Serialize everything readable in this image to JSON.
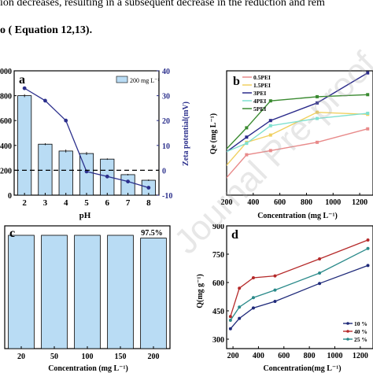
{
  "header": {
    "line1": "ion decreases, resulting in a subsequent decrease in the reduction and rem",
    "line2": "o ( Equation 12,13)."
  },
  "watermark": "Journal Pre-proof",
  "chart_data": [
    {
      "panel": "a",
      "type": "bar",
      "xlabel": "pH",
      "ylabel_right": "Zeta potential(mV)",
      "categories": [
        "2",
        "3",
        "4",
        "5",
        "6",
        "7",
        "8"
      ],
      "series": [
        {
          "name": "200 mg L⁻¹",
          "values": [
            800,
            410,
            355,
            335,
            290,
            165,
            120
          ],
          "error": [
            12,
            8,
            12,
            12,
            6,
            6,
            6
          ],
          "color": "#b9dcf4"
        }
      ],
      "line_series": {
        "values": [
          33,
          28,
          20,
          -0.5,
          -2.5,
          -4.5,
          -7
        ],
        "color": "#2b2f8c"
      },
      "ylim_left": [
        0,
        1000
      ],
      "y_ticks_left": [
        "0",
        "200",
        "400",
        "600",
        "800",
        "1000"
      ],
      "ylim_right": [
        -10,
        40
      ],
      "y_ticks_right": [
        "-10",
        "0",
        "10",
        "20",
        "30",
        "40"
      ],
      "dashed_line": 0
    },
    {
      "panel": "b",
      "type": "line",
      "xlabel": "Concentration (mg L⁻¹)",
      "ylabel": "Qe (mg L⁻¹)",
      "xlim": [
        200,
        1300
      ],
      "x_ticks": [
        "200",
        "400",
        "600",
        "800",
        "1000",
        "1200"
      ],
      "ylim": [
        200,
        800
      ],
      "series": [
        {
          "name": "0.5PEI",
          "color": "#e88a8a",
          "x": [
            180,
            350,
            530,
            880,
            1260
          ],
          "y": [
            270,
            395,
            415,
            455,
            520
          ]
        },
        {
          "name": "1.5PEI",
          "color": "#f0d060",
          "x": [
            180,
            350,
            530,
            880,
            1260
          ],
          "y": [
            330,
            455,
            490,
            600,
            590
          ]
        },
        {
          "name": "3PEI",
          "color": "#2a2a8a",
          "x": [
            180,
            350,
            530,
            880,
            1260
          ],
          "y": [
            400,
            480,
            560,
            645,
            790
          ]
        },
        {
          "name": "4PEI",
          "color": "#7fe0d0",
          "x": [
            180,
            350,
            530,
            880,
            1260
          ],
          "y": [
            405,
            450,
            535,
            570,
            595
          ]
        },
        {
          "name": "5PEI",
          "color": "#3a8a30",
          "x": [
            180,
            350,
            530,
            880,
            1260
          ],
          "y": [
            410,
            525,
            655,
            675,
            685
          ]
        }
      ]
    },
    {
      "panel": "c",
      "type": "bar",
      "xlabel": "Concentration (mg L⁻¹)",
      "categories": [
        "20",
        "50",
        "100",
        "150",
        "200"
      ],
      "values": [
        100,
        100,
        100,
        100,
        97.5
      ],
      "ylim": [
        0,
        100
      ],
      "annotation": "97.5%",
      "color": "#b9dcf4"
    },
    {
      "panel": "d",
      "type": "line",
      "xlabel": "Concentration(mg L⁻¹)",
      "ylabel": "Q(mg g⁻¹)",
      "xlim": [
        150,
        1300
      ],
      "x_ticks": [
        "200",
        "400",
        "600",
        "800",
        "1000",
        "1200"
      ],
      "ylim": [
        250,
        900
      ],
      "y_ticks": [
        "300",
        "450",
        "600",
        "750",
        "900"
      ],
      "series": [
        {
          "name": "10 %",
          "color": "#1f2a7a",
          "x": [
            180,
            250,
            360,
            530,
            880,
            1260
          ],
          "y": [
            355,
            410,
            465,
            500,
            595,
            690
          ]
        },
        {
          "name": "40 %",
          "color": "#b52a2a",
          "x": [
            180,
            250,
            360,
            530,
            880,
            1260
          ],
          "y": [
            420,
            570,
            625,
            635,
            725,
            825
          ]
        },
        {
          "name": "25 %",
          "color": "#2a8a8a",
          "x": [
            180,
            250,
            360,
            530,
            880,
            1260
          ],
          "y": [
            400,
            470,
            520,
            560,
            650,
            780
          ]
        }
      ]
    }
  ]
}
